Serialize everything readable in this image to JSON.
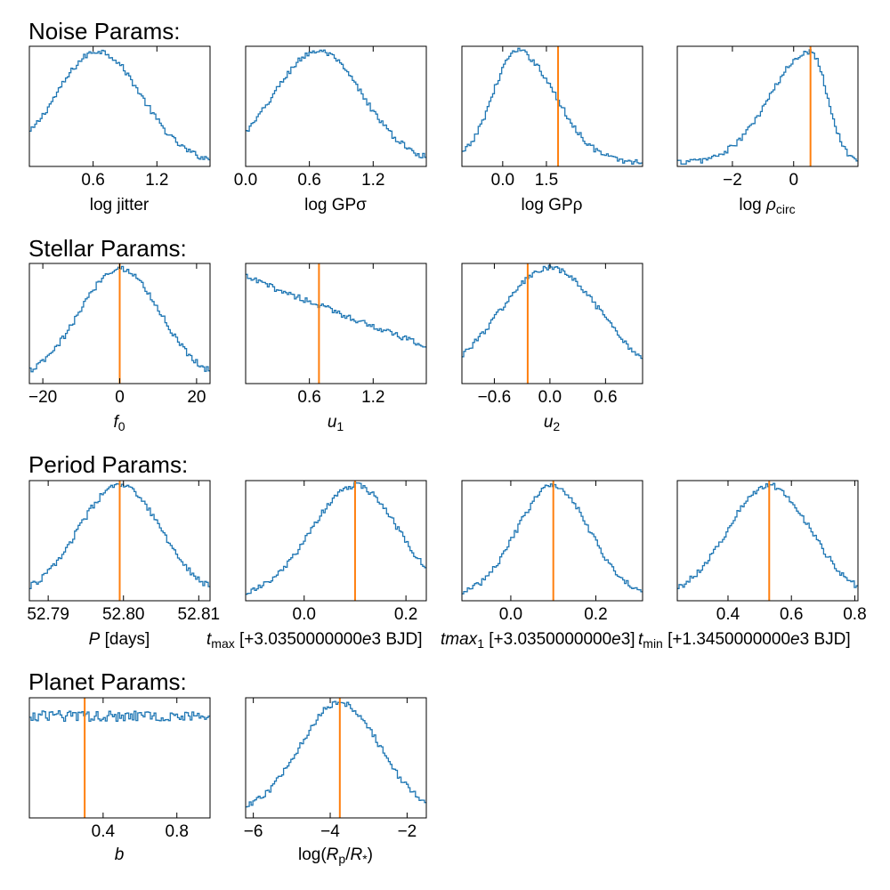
{
  "colors": {
    "hist": "#1f77b4",
    "truth": "#ff7f0e",
    "axes": "#000000"
  },
  "groups": [
    {
      "title": "Noise Params:"
    },
    {
      "title": "Stellar Params:"
    },
    {
      "title": "Period Params:"
    },
    {
      "title": "Planet Params:"
    }
  ],
  "chart_data": [
    {
      "type": "histogram",
      "group": "Noise Params:",
      "xlabel": "log jitter",
      "xlim": [
        0.0,
        1.7
      ],
      "xticks": [
        0.6,
        1.2
      ],
      "xtick_labels": [
        "0.6",
        "1.2"
      ],
      "dist": {
        "kind": "gauss",
        "mu": 0.65,
        "sigma": 0.4
      },
      "truth": null
    },
    {
      "type": "histogram",
      "group": "Noise Params:",
      "xlabel": "log GPσ",
      "xlim": [
        0.0,
        1.7
      ],
      "xticks": [
        0.0,
        0.6,
        1.2
      ],
      "xtick_labels": [
        "0.0",
        "0.6",
        "1.2"
      ],
      "dist": {
        "kind": "gauss",
        "mu": 0.68,
        "sigma": 0.42
      },
      "truth": null
    },
    {
      "type": "histogram",
      "group": "Noise Params:",
      "xlabel": "log GPρ",
      "xlim": [
        -1.4,
        4.8
      ],
      "xticks": [
        0.0,
        1.5
      ],
      "xtick_labels": [
        "0.0",
        "1.5"
      ],
      "dist": {
        "kind": "skew",
        "mu": 0.5,
        "sl": 0.85,
        "sr": 1.3
      },
      "truth": 1.9
    },
    {
      "type": "histogram",
      "group": "Noise Params:",
      "xlabel": "log ρcirc",
      "xlim": [
        -3.8,
        2.1
      ],
      "xticks": [
        -2,
        0
      ],
      "xtick_labels": [
        "−2",
        "0"
      ],
      "dist": {
        "kind": "skew",
        "mu": 0.55,
        "sl": 1.3,
        "sr": 0.55
      },
      "truth": 0.55
    },
    {
      "type": "histogram",
      "group": "Stellar Params:",
      "xlabel": "f0",
      "xlim": [
        -23.5,
        23.5
      ],
      "xticks": [
        -20,
        0,
        20
      ],
      "xtick_labels": [
        "−20",
        "0",
        "20"
      ],
      "dist": {
        "kind": "gauss",
        "mu": 0.0,
        "sigma": 10.5
      },
      "truth": 0.0
    },
    {
      "type": "histogram",
      "group": "Stellar Params:",
      "xlabel": "u1",
      "xlim": [
        0.0,
        1.7
      ],
      "xticks": [
        0.6,
        1.2
      ],
      "xtick_labels": [
        "0.6",
        "1.2"
      ],
      "dist": {
        "kind": "linear",
        "y0": 0.92,
        "y1": 0.3
      },
      "truth": 0.69
    },
    {
      "type": "histogram",
      "group": "Stellar Params:",
      "xlabel": "u2",
      "xlim": [
        -0.95,
        1.0
      ],
      "xticks": [
        -0.6,
        0.0,
        0.6
      ],
      "xtick_labels": [
        "−0.6",
        "0.0",
        "0.6"
      ],
      "dist": {
        "kind": "gauss",
        "mu": 0.0,
        "sigma": 0.55
      },
      "truth": -0.24
    },
    {
      "type": "histogram",
      "group": "Period Params:",
      "xlabel": "P [days]",
      "xlim": [
        52.7875,
        52.8115
      ],
      "xticks": [
        52.79,
        52.8,
        52.81
      ],
      "xtick_labels": [
        "52.79",
        "52.80",
        "52.81"
      ],
      "dist": {
        "kind": "gauss",
        "mu": 52.7995,
        "sigma": 0.0055
      },
      "truth": 52.7995
    },
    {
      "type": "histogram",
      "group": "Period Params:",
      "xlabel": "tmax [+3.0350000000e3 BJD]",
      "xlim": [
        -0.115,
        0.24
      ],
      "xticks": [
        0.0,
        0.2
      ],
      "xtick_labels": [
        "0.0",
        "0.2"
      ],
      "dist": {
        "kind": "gauss",
        "mu": 0.1,
        "sigma": 0.085
      },
      "truth": 0.1
    },
    {
      "type": "histogram",
      "group": "Period Params:",
      "xlabel": "tmax1 [+3.0350000000e3 BJD]",
      "xlim": [
        -0.115,
        0.31
      ],
      "xticks": [
        0.0,
        0.2
      ],
      "xtick_labels": [
        "0.0",
        "0.2"
      ],
      "dist": {
        "kind": "gauss",
        "mu": 0.1,
        "sigma": 0.085
      },
      "truth": 0.1
    },
    {
      "type": "histogram",
      "group": "Period Params:",
      "xlabel": "tmin [+1.3450000000e3 BJD]",
      "xlim": [
        0.24,
        0.81
      ],
      "xticks": [
        0.4,
        0.6,
        0.8
      ],
      "xtick_labels": [
        "0.4",
        "0.6",
        "0.8"
      ],
      "dist": {
        "kind": "gauss",
        "mu": 0.53,
        "sigma": 0.13
      },
      "truth": 0.53
    },
    {
      "type": "histogram",
      "group": "Planet Params:",
      "xlabel": "b",
      "xlim": [
        0.0,
        0.98
      ],
      "xticks": [
        0.4,
        0.8
      ],
      "xtick_labels": [
        "0.4",
        "0.8"
      ],
      "dist": {
        "kind": "flat"
      },
      "truth": 0.3
    },
    {
      "type": "histogram",
      "group": "Planet Params:",
      "xlabel": "log(Rp/R*)",
      "xlim": [
        -6.2,
        -1.5
      ],
      "xticks": [
        -6,
        -4,
        -2
      ],
      "xtick_labels": [
        "−6",
        "−4",
        "−2"
      ],
      "dist": {
        "kind": "gauss",
        "mu": -3.75,
        "sigma": 1.05
      },
      "truth": -3.75
    }
  ]
}
